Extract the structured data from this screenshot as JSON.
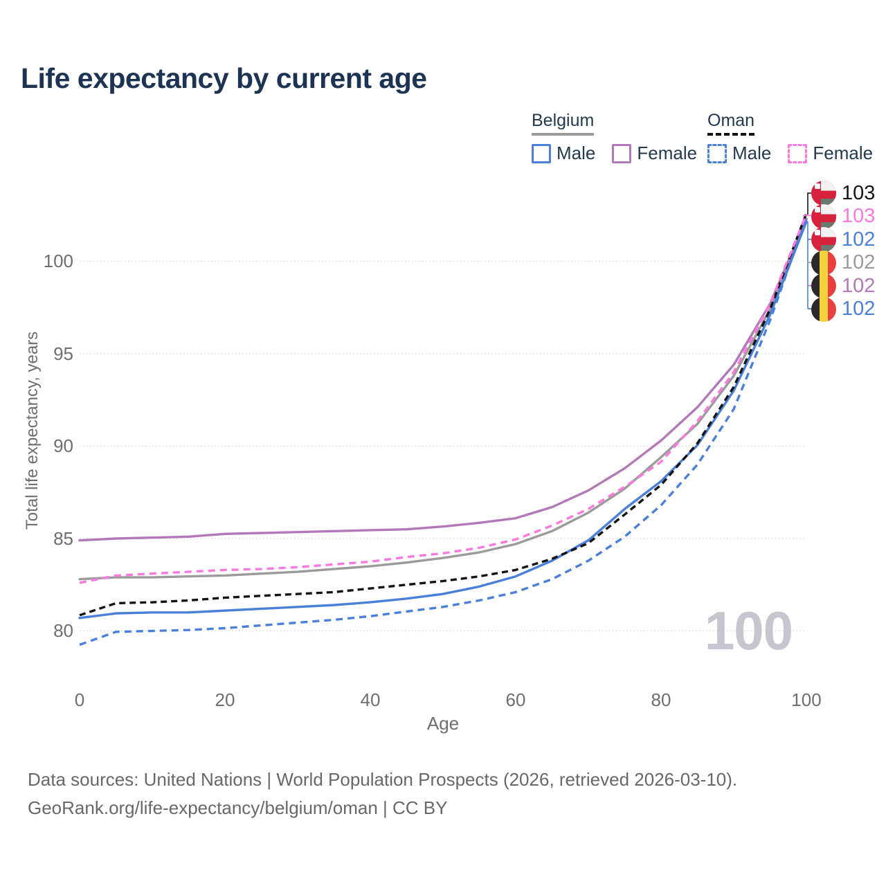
{
  "title": "Life expectancy by current age",
  "legend": {
    "groups": [
      {
        "label": "Belgium",
        "line_style": "solid",
        "underline_color": "#9b9b9b",
        "items": [
          {
            "label": "Male",
            "color": "#4a80d9",
            "dashed": false
          },
          {
            "label": "Female",
            "color": "#b279b8",
            "dashed": false
          }
        ]
      },
      {
        "label": "Oman",
        "line_style": "dashed",
        "underline_color": "#141414",
        "items": [
          {
            "label": "Male",
            "color": "#4a80d9",
            "dashed": true
          },
          {
            "label": "Female",
            "color": "#fb79de",
            "dashed": true
          }
        ]
      }
    ]
  },
  "end_labels": [
    {
      "value": "103",
      "color": "#141414",
      "flag": "oman",
      "series": "Oman Total"
    },
    {
      "value": "103",
      "color": "#fb79de",
      "flag": "oman",
      "series": "Oman Female"
    },
    {
      "value": "102",
      "color": "#4a80d9",
      "flag": "oman",
      "series": "Oman Male"
    },
    {
      "value": "102",
      "color": "#9b9b9b",
      "flag": "belgium",
      "series": "Belgium Total"
    },
    {
      "value": "102",
      "color": "#b279b8",
      "flag": "belgium",
      "series": "Belgium Female"
    },
    {
      "value": "102",
      "color": "#4a80d9",
      "flag": "belgium",
      "series": "Belgium Male"
    }
  ],
  "watermark": "100",
  "axes": {
    "xlabel": "Age",
    "ylabel": "Total life expectancy, years"
  },
  "footer": {
    "line1": "Data sources: United Nations | World Population Prospects (2026, retrieved 2026-03-10).",
    "line2": "GeoRank.org/life-expectancy/belgium/oman | CC BY"
  },
  "chart_data": {
    "type": "line",
    "title": "Life expectancy by current age",
    "xlabel": "Age",
    "ylabel": "Total life expectancy, years",
    "xlim": [
      0,
      100
    ],
    "ylim": [
      77.6,
      103.6
    ],
    "grid": "horizontal-dotted",
    "grid_color": "#d9d9d9",
    "x_ticks": [
      0,
      20,
      40,
      60,
      80,
      100
    ],
    "y_ticks": [
      80,
      85,
      90,
      95,
      100
    ],
    "legend_position": "top-right",
    "ages": [
      0,
      5,
      10,
      15,
      20,
      25,
      30,
      35,
      40,
      45,
      50,
      55,
      60,
      65,
      70,
      75,
      80,
      85,
      90,
      95,
      100
    ],
    "series": [
      {
        "name": "Belgium Male",
        "country": "Belgium",
        "sex": "Male",
        "style": "solid",
        "color": "#4a80d9",
        "end_label": "102",
        "values": [
          80.7,
          80.95,
          81.0,
          81.0,
          81.1,
          81.2,
          81.3,
          81.4,
          81.55,
          81.75,
          82.0,
          82.4,
          82.95,
          83.8,
          84.9,
          86.6,
          88.1,
          90.05,
          93.0,
          97.1,
          102.15
        ]
      },
      {
        "name": "Belgium Female",
        "country": "Belgium",
        "sex": "Female",
        "style": "solid",
        "color": "#b279b8",
        "end_label": "102",
        "values": [
          84.9,
          85.0,
          85.05,
          85.1,
          85.25,
          85.3,
          85.35,
          85.4,
          85.45,
          85.5,
          85.65,
          85.85,
          86.1,
          86.7,
          87.6,
          88.8,
          90.3,
          92.1,
          94.4,
          97.7,
          102.3
        ]
      },
      {
        "name": "Belgium Total",
        "country": "Belgium",
        "sex": "Both",
        "style": "solid",
        "color": "#9b9b9b",
        "end_label": "102",
        "values": [
          82.8,
          82.9,
          82.9,
          82.95,
          83.0,
          83.1,
          83.2,
          83.35,
          83.5,
          83.7,
          83.95,
          84.25,
          84.7,
          85.4,
          86.4,
          87.7,
          89.4,
          91.2,
          93.8,
          97.4,
          102.25
        ]
      },
      {
        "name": "Oman Male",
        "country": "Oman",
        "sex": "Male",
        "style": "dashed",
        "color": "#4a80d9",
        "end_label": "102",
        "values": [
          79.25,
          79.95,
          80.0,
          80.05,
          80.15,
          80.3,
          80.45,
          80.6,
          80.8,
          81.05,
          81.3,
          81.65,
          82.1,
          82.8,
          83.8,
          85.1,
          86.8,
          89.0,
          92.0,
          96.8,
          102.4
        ]
      },
      {
        "name": "Oman Female",
        "country": "Oman",
        "sex": "Female",
        "style": "dashed",
        "color": "#fb79de",
        "end_label": "103",
        "values": [
          82.6,
          83.0,
          83.1,
          83.2,
          83.3,
          83.35,
          83.45,
          83.6,
          83.75,
          84.0,
          84.2,
          84.5,
          84.95,
          85.7,
          86.6,
          87.8,
          89.15,
          91.35,
          94.0,
          97.7,
          102.55
        ]
      },
      {
        "name": "Oman Total",
        "country": "Oman",
        "sex": "Both",
        "style": "dashed",
        "color": "#141414",
        "end_label": "103",
        "values": [
          80.85,
          81.5,
          81.55,
          81.65,
          81.8,
          81.9,
          82.0,
          82.1,
          82.3,
          82.5,
          82.7,
          82.95,
          83.3,
          83.9,
          84.75,
          86.3,
          87.9,
          90.15,
          93.2,
          97.4,
          102.6
        ]
      }
    ]
  }
}
